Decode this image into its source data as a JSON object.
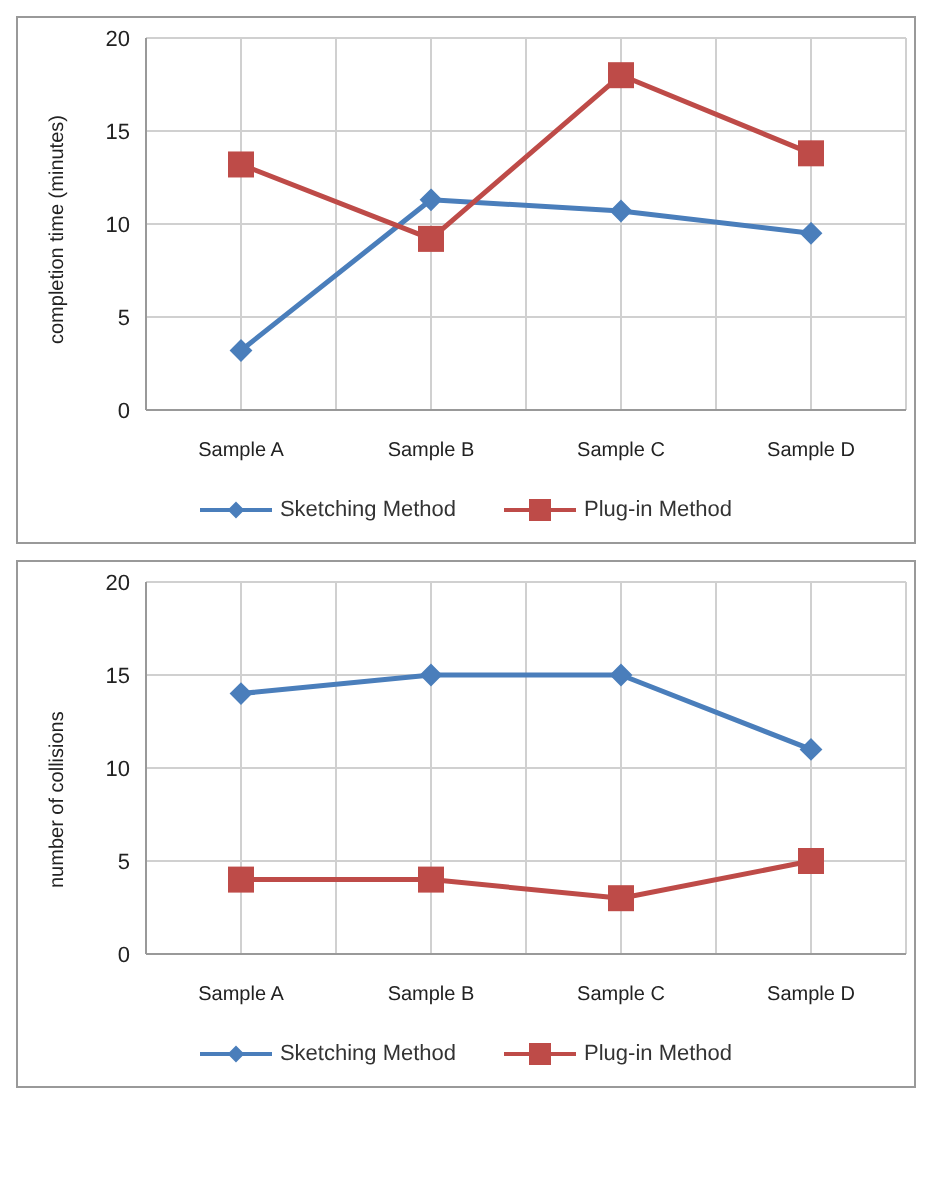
{
  "chart_data": [
    {
      "type": "line",
      "categories": [
        "Sample A",
        "Sample B",
        "Sample C",
        "Sample D"
      ],
      "ylabel": "completion time (minutes)",
      "ylim": [
        0,
        20
      ],
      "yticks": [
        0,
        5,
        10,
        15,
        20
      ],
      "grid": true,
      "legend": "bottom",
      "series": [
        {
          "name": "Sketching Method",
          "color": "#4a7ebb",
          "marker": "diamond",
          "values": [
            3.2,
            11.3,
            10.7,
            9.5
          ]
        },
        {
          "name": "Plug-in Method",
          "color": "#be4b48",
          "marker": "square",
          "values": [
            13.2,
            9.2,
            18.0,
            13.8
          ]
        }
      ]
    },
    {
      "type": "line",
      "categories": [
        "Sample A",
        "Sample B",
        "Sample C",
        "Sample D"
      ],
      "ylabel": "number of collisions",
      "ylim": [
        0,
        20
      ],
      "yticks": [
        0,
        5,
        10,
        15,
        20
      ],
      "grid": true,
      "legend": "bottom",
      "series": [
        {
          "name": "Sketching Method",
          "color": "#4a7ebb",
          "marker": "diamond",
          "values": [
            14,
            15,
            15,
            11
          ]
        },
        {
          "name": "Plug-in Method",
          "color": "#be4b48",
          "marker": "square",
          "values": [
            4,
            4,
            3,
            5
          ]
        }
      ]
    }
  ]
}
